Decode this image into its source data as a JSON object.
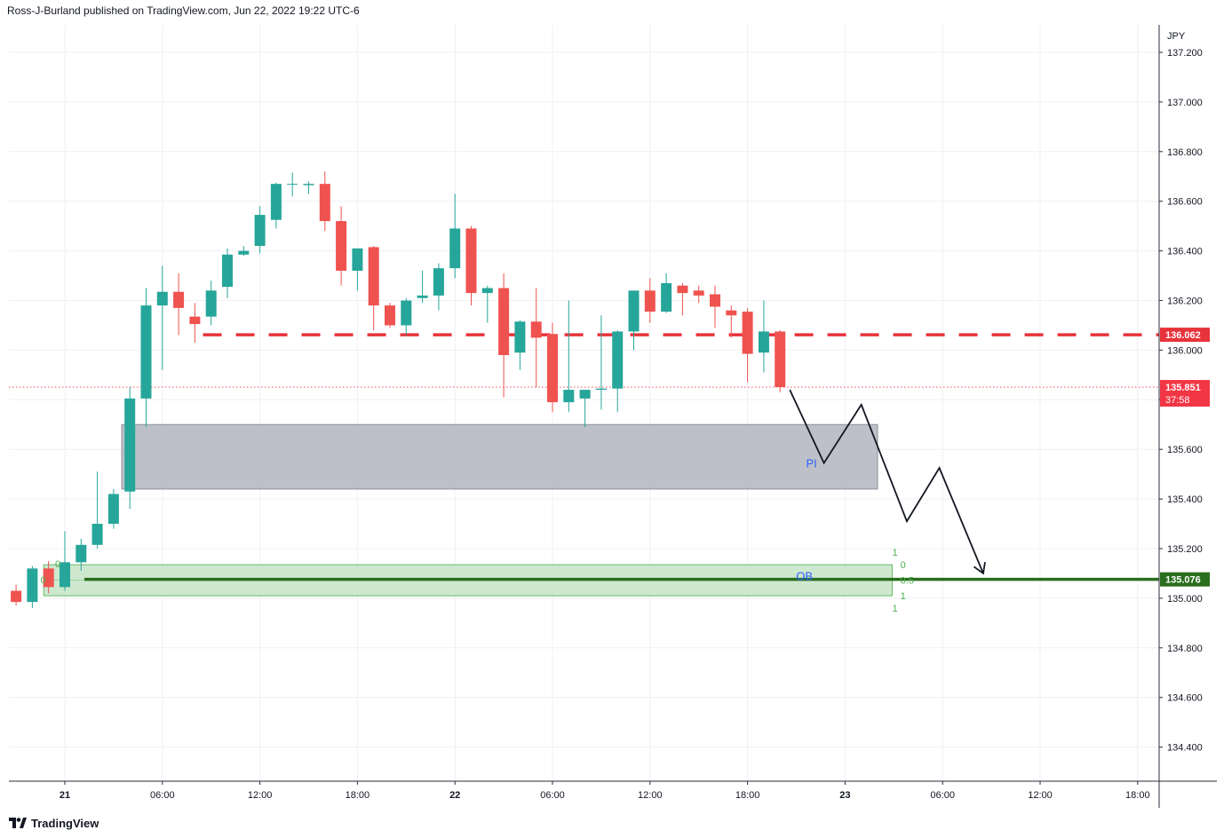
{
  "header": {
    "text": "Ross-J-Burland published on TradingView.com, Jun 22, 2022 19:22 UTC-6"
  },
  "footer": {
    "brand": "TradingView",
    "logo_icon": "tradingview-logo-icon"
  },
  "colors": {
    "bull": "#26a69a",
    "bear": "#ef5350",
    "grid": "#eef0f3",
    "axis_line": "#2a2e39",
    "resistance": "#e8333b",
    "support": "#2a6e1f",
    "current": "#f23645",
    "supply_fill": "#b2b5be",
    "demand_fill": "#c8e6c9",
    "demand_border": "#66bb6a",
    "projection": "#131722",
    "label_blue": "#2962ff"
  },
  "chart_data": {
    "type": "candlestick",
    "currency": "JPY",
    "interval_hours": 1,
    "ylim": [
      134.2,
      137.3
    ],
    "y_ticks": [
      "137.200",
      "137.000",
      "136.800",
      "136.600",
      "136.400",
      "136.200",
      "136.000",
      "135.800",
      "135.600",
      "135.400",
      "135.200",
      "135.000",
      "134.800",
      "134.600",
      "134.400"
    ],
    "x_ticks": [
      {
        "t": 0,
        "label": "21",
        "bold": true
      },
      {
        "t": 6,
        "label": "06:00"
      },
      {
        "t": 12,
        "label": "12:00"
      },
      {
        "t": 18,
        "label": "18:00"
      },
      {
        "t": 24,
        "label": "22",
        "bold": true
      },
      {
        "t": 30,
        "label": "06:00"
      },
      {
        "t": 36,
        "label": "12:00"
      },
      {
        "t": 42,
        "label": "18:00"
      },
      {
        "t": 48,
        "label": "23",
        "bold": true
      },
      {
        "t": 54,
        "label": "06:00"
      },
      {
        "t": 60,
        "label": "12:00"
      },
      {
        "t": 66,
        "label": "18:00"
      }
    ],
    "candles": [
      {
        "t": -3,
        "o": 135.03,
        "h": 135.055,
        "l": 134.97,
        "c": 134.985
      },
      {
        "t": -2,
        "o": 134.985,
        "h": 135.13,
        "l": 134.96,
        "c": 135.12
      },
      {
        "t": -1,
        "o": 135.12,
        "h": 135.15,
        "l": 135.02,
        "c": 135.045
      },
      {
        "t": 0,
        "o": 135.045,
        "h": 135.27,
        "l": 135.03,
        "c": 135.145
      },
      {
        "t": 1,
        "o": 135.145,
        "h": 135.24,
        "l": 135.11,
        "c": 135.215
      },
      {
        "t": 2,
        "o": 135.215,
        "h": 135.51,
        "l": 135.2,
        "c": 135.3
      },
      {
        "t": 3,
        "o": 135.3,
        "h": 135.44,
        "l": 135.28,
        "c": 135.42
      },
      {
        "t": 4,
        "o": 135.43,
        "h": 135.85,
        "l": 135.36,
        "c": 135.805
      },
      {
        "t": 5,
        "o": 135.805,
        "h": 136.25,
        "l": 135.69,
        "c": 136.18
      },
      {
        "t": 6,
        "o": 136.18,
        "h": 136.34,
        "l": 135.92,
        "c": 136.235
      },
      {
        "t": 7,
        "o": 136.235,
        "h": 136.31,
        "l": 136.06,
        "c": 136.17
      },
      {
        "t": 8,
        "o": 136.135,
        "h": 136.19,
        "l": 136.03,
        "c": 136.105
      },
      {
        "t": 9,
        "o": 136.135,
        "h": 136.28,
        "l": 136.1,
        "c": 136.24
      },
      {
        "t": 10,
        "o": 136.255,
        "h": 136.41,
        "l": 136.21,
        "c": 136.385
      },
      {
        "t": 11,
        "o": 136.385,
        "h": 136.42,
        "l": 136.38,
        "c": 136.4
      },
      {
        "t": 12,
        "o": 136.42,
        "h": 136.58,
        "l": 136.39,
        "c": 136.545
      },
      {
        "t": 13,
        "o": 136.525,
        "h": 136.675,
        "l": 136.49,
        "c": 136.67
      },
      {
        "t": 14,
        "o": 136.67,
        "h": 136.715,
        "l": 136.62,
        "c": 136.67
      },
      {
        "t": 15,
        "o": 136.665,
        "h": 136.68,
        "l": 136.63,
        "c": 136.67
      },
      {
        "t": 16,
        "o": 136.67,
        "h": 136.72,
        "l": 136.48,
        "c": 136.52
      },
      {
        "t": 17,
        "o": 136.52,
        "h": 136.58,
        "l": 136.26,
        "c": 136.32
      },
      {
        "t": 18,
        "o": 136.32,
        "h": 136.4,
        "l": 136.24,
        "c": 136.41
      },
      {
        "t": 19,
        "o": 136.415,
        "h": 136.42,
        "l": 136.08,
        "c": 136.18
      },
      {
        "t": 20,
        "o": 136.18,
        "h": 136.19,
        "l": 136.09,
        "c": 136.1
      },
      {
        "t": 21,
        "o": 136.1,
        "h": 136.21,
        "l": 136.06,
        "c": 136.2
      },
      {
        "t": 22,
        "o": 136.21,
        "h": 136.32,
        "l": 136.19,
        "c": 136.22
      },
      {
        "t": 23,
        "o": 136.22,
        "h": 136.35,
        "l": 136.16,
        "c": 136.33
      },
      {
        "t": 24,
        "o": 136.33,
        "h": 136.63,
        "l": 136.29,
        "c": 136.49
      },
      {
        "t": 25,
        "o": 136.49,
        "h": 136.5,
        "l": 136.18,
        "c": 136.23
      },
      {
        "t": 26,
        "o": 136.23,
        "h": 136.26,
        "l": 136.11,
        "c": 136.25
      },
      {
        "t": 27,
        "o": 136.25,
        "h": 136.31,
        "l": 135.81,
        "c": 135.98
      },
      {
        "t": 28,
        "o": 135.99,
        "h": 136.12,
        "l": 135.92,
        "c": 136.115
      },
      {
        "t": 29,
        "o": 136.115,
        "h": 136.25,
        "l": 135.85,
        "c": 136.05
      },
      {
        "t": 30,
        "o": 136.065,
        "h": 136.11,
        "l": 135.75,
        "c": 135.79
      },
      {
        "t": 31,
        "o": 135.79,
        "h": 136.2,
        "l": 135.75,
        "c": 135.84
      },
      {
        "t": 32,
        "o": 135.805,
        "h": 135.84,
        "l": 135.69,
        "c": 135.84
      },
      {
        "t": 33,
        "o": 135.84,
        "h": 136.14,
        "l": 135.76,
        "c": 135.845
      },
      {
        "t": 34,
        "o": 135.845,
        "h": 136.08,
        "l": 135.75,
        "c": 136.075
      },
      {
        "t": 35,
        "o": 136.075,
        "h": 136.24,
        "l": 136.0,
        "c": 136.24
      },
      {
        "t": 36,
        "o": 136.24,
        "h": 136.29,
        "l": 136.11,
        "c": 136.155
      },
      {
        "t": 37,
        "o": 136.155,
        "h": 136.31,
        "l": 136.15,
        "c": 136.27
      },
      {
        "t": 38,
        "o": 136.26,
        "h": 136.27,
        "l": 136.14,
        "c": 136.23
      },
      {
        "t": 39,
        "o": 136.24,
        "h": 136.26,
        "l": 136.19,
        "c": 136.22
      },
      {
        "t": 40,
        "o": 136.225,
        "h": 136.26,
        "l": 136.09,
        "c": 136.175
      },
      {
        "t": 41,
        "o": 136.16,
        "h": 136.18,
        "l": 136.05,
        "c": 136.14
      },
      {
        "t": 42,
        "o": 136.155,
        "h": 136.17,
        "l": 135.87,
        "c": 135.985
      },
      {
        "t": 43,
        "o": 135.99,
        "h": 136.2,
        "l": 135.91,
        "c": 136.075
      },
      {
        "t": 44,
        "o": 136.075,
        "h": 136.08,
        "l": 135.83,
        "c": 135.851
      }
    ],
    "levels": [
      {
        "name": "resistance",
        "price": 136.062,
        "label": "136.062",
        "t_start": 8.5,
        "style": "dashed"
      },
      {
        "name": "support",
        "price": 135.076,
        "label": "135.076",
        "t_start": 1.2,
        "style": "solid"
      }
    ],
    "current_price": {
      "price": 135.851,
      "label": "135.851",
      "countdown": "37:58"
    },
    "zones": [
      {
        "name": "supply-zone",
        "t_start": 3.5,
        "t_end": 50.0,
        "top": 135.7,
        "bottom": 135.44
      },
      {
        "name": "demand-zone",
        "t_start": -1.3,
        "t_end": 50.9,
        "top": 135.135,
        "bottom": 135.01,
        "label": "OB",
        "fib_labels": [
          {
            "text": "0",
            "t": 51.4,
            "p": 135.135
          },
          {
            "text": "0.5",
            "t": 51.4,
            "p": 135.073
          },
          {
            "text": "1",
            "t": 51.4,
            "p": 135.01
          },
          {
            "text": "1",
            "t": 50.9,
            "p": 135.185
          },
          {
            "text": "1",
            "t": 50.9,
            "p": 134.96
          },
          {
            "text": "0",
            "t": -0.6,
            "p": 135.14
          },
          {
            "text": "0",
            "t": -1.5,
            "p": 135.075
          }
        ]
      }
    ],
    "annotations": [
      {
        "text": "PI",
        "t": 45.6,
        "p": 135.545
      }
    ],
    "projection": [
      {
        "t": 44.6,
        "p": 135.84
      },
      {
        "t": 46.7,
        "p": 135.545
      },
      {
        "t": 49.0,
        "p": 135.78
      },
      {
        "t": 51.8,
        "p": 135.31
      },
      {
        "t": 53.8,
        "p": 135.525
      },
      {
        "t": 56.5,
        "p": 135.1
      }
    ]
  }
}
